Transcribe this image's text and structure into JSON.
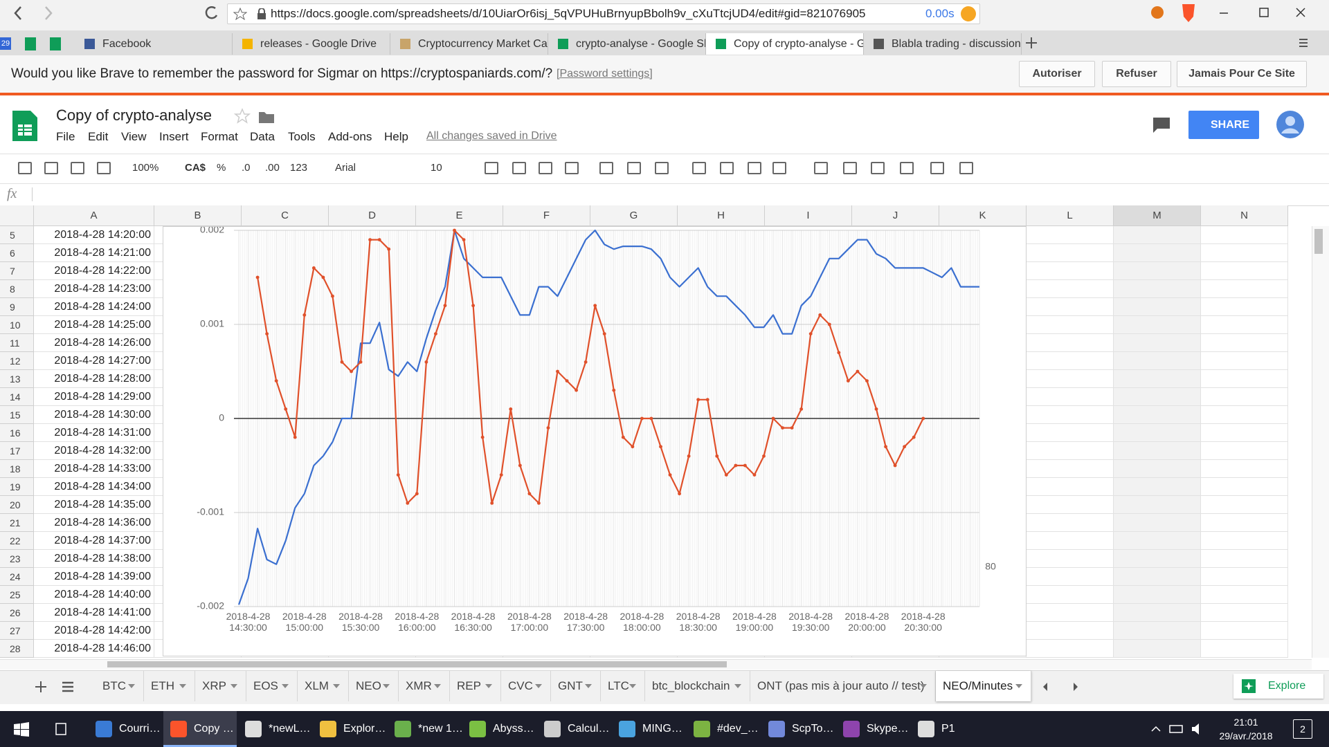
{
  "browser": {
    "url": "https://docs.google.com/spreadsheets/d/10UiarOr6isj_5qVPUHuBrnyupBbolh9v_cXuTtcjUD4/edit#gid=821076905",
    "load_time": "0.00s",
    "pinned_badge": "29",
    "tabs": [
      "Facebook",
      "releases - Google Drive",
      "Cryptocurrency Market Ca",
      "crypto-analyse - Google Sl",
      "Copy of crypto-analyse - G",
      "Blabla trading - discussion"
    ],
    "active_tab": 4
  },
  "password_bar": {
    "message": "Would you like Brave to remember the password for Sigmar on https://cryptospaniards.com/?",
    "settings_link": "[Password settings]",
    "buttons": [
      "Autoriser",
      "Refuser",
      "Jamais Pour Ce Site"
    ]
  },
  "header": {
    "title": "Copy of crypto-analyse",
    "menu": [
      "File",
      "Edit",
      "View",
      "Insert",
      "Format",
      "Data",
      "Tools",
      "Add-ons",
      "Help"
    ],
    "saved_status": "All changes saved in Drive",
    "share": "SHARE"
  },
  "toolbar": {
    "zoom": "100%",
    "currency": "CA$",
    "percent": "%",
    "decrease_decimals": ".0",
    "increase_decimals": ".00",
    "more_formats": "123",
    "font": "Arial",
    "font_size": "10"
  },
  "formula_bar": {
    "label": "fx"
  },
  "grid": {
    "columns": [
      "A",
      "B",
      "C",
      "D",
      "E",
      "F",
      "G",
      "H",
      "I",
      "J",
      "K",
      "L",
      "M",
      "N"
    ],
    "rows": [
      [
        5,
        "2018-4-28 14:20:00"
      ],
      [
        6,
        "2018-4-28 14:21:00"
      ],
      [
        7,
        "2018-4-28 14:22:00"
      ],
      [
        8,
        "2018-4-28 14:23:00"
      ],
      [
        9,
        "2018-4-28 14:24:00"
      ],
      [
        10,
        "2018-4-28 14:25:00"
      ],
      [
        11,
        "2018-4-28 14:26:00"
      ],
      [
        12,
        "2018-4-28 14:27:00"
      ],
      [
        13,
        "2018-4-28 14:28:00"
      ],
      [
        14,
        "2018-4-28 14:29:00"
      ],
      [
        15,
        "2018-4-28 14:30:00"
      ],
      [
        16,
        "2018-4-28 14:31:00"
      ],
      [
        17,
        "2018-4-28 14:32:00"
      ],
      [
        18,
        "2018-4-28 14:33:00"
      ],
      [
        19,
        "2018-4-28 14:34:00"
      ],
      [
        20,
        "2018-4-28 14:35:00"
      ],
      [
        21,
        "2018-4-28 14:36:00"
      ],
      [
        22,
        "2018-4-28 14:37:00"
      ],
      [
        23,
        "2018-4-28 14:38:00"
      ],
      [
        24,
        "2018-4-28 14:39:00"
      ],
      [
        25,
        "2018-4-28 14:40:00"
      ],
      [
        26,
        "2018-4-28 14:41:00"
      ],
      [
        27,
        "2018-4-28 14:42:00"
      ],
      [
        28,
        "2018-4-28 14:46:00"
      ]
    ]
  },
  "chart": {
    "type": "line",
    "grid": true,
    "annotation": "80",
    "categories": [
      null,
      "2018-4-28 14:30:00",
      null,
      null,
      null,
      null,
      null,
      "2018-4-28 15:00:00",
      null,
      null,
      null,
      null,
      null,
      "2018-4-28 15:30:00",
      null,
      null,
      null,
      null,
      null,
      "2018-4-28 16:00:00",
      null,
      null,
      null,
      null,
      null,
      "2018-4-28 16:30:00",
      null,
      null,
      null,
      null,
      null,
      "2018-4-28 17:00:00",
      null,
      null,
      null,
      null,
      null,
      "2018-4-28 17:30:00",
      null,
      null,
      null,
      null,
      null,
      "2018-4-28 18:00:00",
      null,
      null,
      null,
      null,
      null,
      "2018-4-28 18:30:00",
      null,
      null,
      null,
      null,
      null,
      "2018-4-28 19:00:00",
      null,
      null,
      null,
      null,
      null,
      "2018-4-28 19:30:00",
      null,
      null,
      null,
      null,
      null,
      "2018-4-28 20:00:00",
      null,
      null,
      null,
      null,
      null,
      "2018-4-28 20:30:00",
      null,
      null,
      null,
      null,
      null,
      null
    ],
    "ylim": [
      -0.002,
      0.002
    ],
    "yticks": [
      -0.002,
      -0.001,
      0,
      0.001,
      0.002
    ],
    "series": [
      {
        "color": "#3a6fd0",
        "points": false,
        "values": [
          -0.00198,
          -0.0017,
          -0.00117,
          -0.0015,
          -0.00155,
          -0.0013,
          -0.00095,
          -0.0008,
          -0.0005,
          -0.0004,
          -0.00025,
          0,
          0,
          0.0008,
          0.0008,
          0.00102,
          0.00052,
          0.00045,
          0.0006,
          0.0005,
          0.00085,
          0.00115,
          0.0014,
          0.002,
          0.0017,
          0.0016,
          0.0015,
          0.0015,
          0.0015,
          0.0013,
          0.0011,
          0.0011,
          0.0014,
          0.0014,
          0.0013,
          0.0015,
          0.0017,
          0.0019,
          0.002,
          0.00185,
          0.0018,
          0.00183,
          0.00183,
          0.00183,
          0.0018,
          0.0017,
          0.0015,
          0.0014,
          0.0015,
          0.0016,
          0.0014,
          0.0013,
          0.0013,
          0.0012,
          0.0011,
          0.00097,
          0.00097,
          0.0011,
          0.0009,
          0.0009,
          0.0012,
          0.0013,
          0.0015,
          0.0017,
          0.0017,
          0.0018,
          0.0019,
          0.0019,
          0.00175,
          0.0017,
          0.0016,
          0.0016,
          0.0016,
          0.0016,
          0.00155,
          0.0015,
          0.0016,
          0.0014,
          0.0014,
          0.0014
        ]
      },
      {
        "color": "#e0502a",
        "points": true,
        "values": [
          null,
          null,
          0.0015,
          0.0009,
          0.0004,
          0.0001,
          -0.0002,
          0.0011,
          0.0016,
          0.0015,
          0.0013,
          0.0006,
          0.0005,
          0.0006,
          0.0019,
          0.0019,
          0.0018,
          -0.0006,
          -0.0009,
          -0.0008,
          0.0006,
          0.0009,
          0.0012,
          0.002,
          0.0019,
          0.0012,
          -0.0002,
          -0.0009,
          -0.0006,
          0.0001,
          -0.0005,
          -0.0008,
          -0.0009,
          -0.0001,
          0.0005,
          0.0004,
          0.0003,
          0.0006,
          0.0012,
          0.0009,
          0.0003,
          -0.0002,
          -0.0003,
          0,
          0,
          -0.0003,
          -0.0006,
          -0.0008,
          -0.0004,
          0.0002,
          0.0002,
          -0.0004,
          -0.0006,
          -0.0005,
          -0.0005,
          -0.0006,
          -0.0004,
          0,
          -0.0001,
          -0.0001,
          0.0001,
          0.0009,
          0.0011,
          0.001,
          0.0007,
          0.0004,
          0.0005,
          0.0004,
          0.0001,
          -0.0003,
          -0.0005,
          -0.0003,
          -0.0002,
          0,
          null,
          null,
          null,
          null,
          null,
          null
        ]
      }
    ]
  },
  "sheet_tabs": {
    "tabs": [
      "BTC",
      "ETH",
      "XRP",
      "EOS",
      "XLM",
      "NEO",
      "XMR",
      "REP",
      "CVC",
      "GNT",
      "LTC",
      "btc_blockchain",
      "ONT (pas mis à jour auto // test)",
      "NEO/Minutes"
    ],
    "active_tab": 13,
    "explore": "Explore"
  },
  "taskbar": {
    "items": [
      "Courri…",
      "Copy …",
      "*newL…",
      "Explor…",
      "*new 1…",
      "Abyss…",
      "Calcul…",
      "MING…",
      "#dev_…",
      "ScpTo…",
      "Skype…",
      "P1"
    ],
    "active_item": 1,
    "time": "21:01",
    "date": "29/avr./2018",
    "notifications": "2"
  }
}
